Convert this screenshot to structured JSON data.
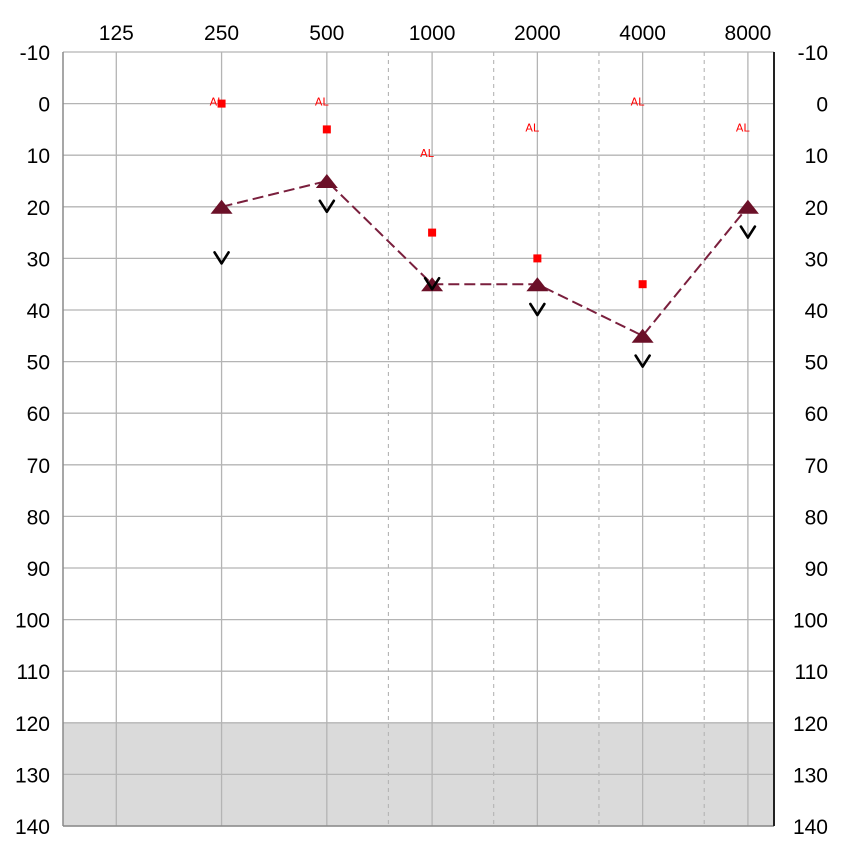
{
  "chart_data": {
    "type": "line",
    "title": "",
    "xlabel": "",
    "ylabel": "",
    "x_scale": "log2",
    "y_inverted": true,
    "x_tick_labels": [
      "125",
      "250",
      "500",
      "1000",
      "2000",
      "4000",
      "8000"
    ],
    "x_ticks": [
      125,
      250,
      500,
      1000,
      2000,
      4000,
      8000
    ],
    "x_half_octaves": [
      750,
      1500,
      3000,
      6000
    ],
    "xlim": [
      88,
      9500
    ],
    "y_ticks": [
      -10,
      0,
      10,
      20,
      30,
      40,
      50,
      60,
      70,
      80,
      90,
      100,
      110,
      120,
      130,
      140
    ],
    "y_tick_labels": [
      "-10",
      "0",
      "10",
      "20",
      "30",
      "40",
      "50",
      "60",
      "70",
      "80",
      "90",
      "100",
      "110",
      "120",
      "130",
      "140"
    ],
    "ylim": [
      -10,
      140
    ],
    "shaded_region": [
      120,
      140
    ],
    "grid": true,
    "colors": {
      "air_conduction": "#6b1028",
      "connector_line": "#7a1f3d",
      "bone_conduction": "#000000",
      "masked_marker": "#ff0000",
      "shade": "#dadada",
      "grid": "#b4b4b4"
    },
    "series": [
      {
        "marker": "triangle",
        "connected": true,
        "x": [
          250,
          500,
          1000,
          2000,
          4000,
          8000
        ],
        "values": [
          20,
          15,
          35,
          35,
          45,
          20
        ]
      },
      {
        "marker": "chevron-v",
        "connected": false,
        "x": [
          250,
          500,
          1000,
          2000,
          4000,
          8000
        ],
        "values": [
          30,
          20,
          35,
          40,
          50,
          25
        ]
      },
      {
        "marker": "square",
        "connected": false,
        "x": [
          250,
          500,
          1000,
          2000,
          4000
        ],
        "values": [
          0,
          5,
          25,
          30,
          35
        ]
      },
      {
        "marker": "AL-text",
        "marker_text": "AL",
        "connected": false,
        "x": [
          250,
          500,
          1000,
          2000,
          4000,
          8000
        ],
        "values": [
          0,
          0,
          10,
          5,
          0,
          5
        ]
      }
    ]
  }
}
